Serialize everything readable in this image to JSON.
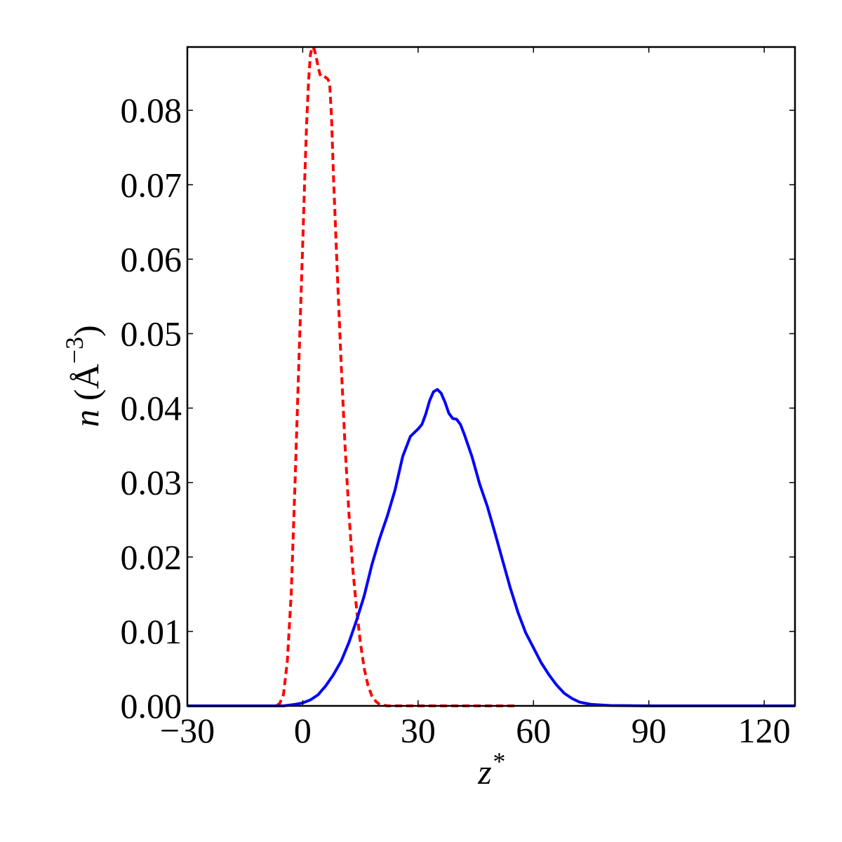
{
  "chart_data": {
    "type": "line",
    "xlabel_main": "z",
    "xlabel_sup": "*",
    "ylabel_var": "n",
    "ylabel_unit_open": " (",
    "ylabel_unit": "Å",
    "ylabel_exp": "−3",
    "ylabel_unit_close": ")",
    "xlim": [
      -30,
      128
    ],
    "ylim": [
      0,
      0.0885
    ],
    "xticks": [
      -30,
      0,
      30,
      60,
      90,
      120
    ],
    "xtick_labels": [
      "−30",
      "0",
      "30",
      "60",
      "90",
      "120"
    ],
    "yticks": [
      0.0,
      0.01,
      0.02,
      0.03,
      0.04,
      0.05,
      0.06,
      0.07,
      0.08
    ],
    "ytick_labels": [
      "0.00",
      "0.01",
      "0.02",
      "0.03",
      "0.04",
      "0.05",
      "0.06",
      "0.07",
      "0.08"
    ],
    "grid": false,
    "series": [
      {
        "color": "#ff0000",
        "style": "dashed",
        "x": [
          -30,
          -10,
          -7,
          -6,
          -5,
          -4,
          -3,
          -2,
          -1,
          0,
          0.5,
          1,
          1.5,
          2,
          2.5,
          3,
          3.5,
          4,
          4.5,
          5,
          5.5,
          6,
          6.5,
          7,
          7.5,
          8,
          9,
          10,
          11,
          12,
          13,
          14,
          15,
          16,
          17,
          18,
          19,
          20,
          22,
          25,
          30,
          40,
          55
        ],
        "y": [
          0,
          0,
          0,
          0.0003,
          0.0015,
          0.006,
          0.015,
          0.03,
          0.046,
          0.062,
          0.0705,
          0.078,
          0.0838,
          0.0875,
          0.0885,
          0.0882,
          0.0872,
          0.0858,
          0.0848,
          0.0845,
          0.0846,
          0.0844,
          0.0842,
          0.0837,
          0.079,
          0.071,
          0.058,
          0.046,
          0.035,
          0.026,
          0.0185,
          0.013,
          0.0085,
          0.005,
          0.0027,
          0.0013,
          0.0006,
          0.0002,
          0,
          0,
          0,
          0,
          0
        ]
      },
      {
        "color": "#0000ff",
        "style": "solid",
        "x": [
          -30,
          -10,
          -5,
          -2,
          0,
          2,
          4,
          6,
          8,
          10,
          12,
          14,
          16,
          18,
          20,
          22,
          24,
          26,
          28,
          30,
          31,
          32,
          33,
          34,
          35,
          36,
          37,
          38,
          39,
          40,
          41,
          42,
          44,
          46,
          48,
          50,
          52,
          54,
          56,
          58,
          60,
          62,
          64,
          66,
          68,
          70,
          72,
          75,
          80,
          90,
          100,
          128
        ],
        "y": [
          0,
          0,
          0,
          0.0002,
          0.0004,
          0.0008,
          0.0015,
          0.0027,
          0.0042,
          0.006,
          0.0085,
          0.0115,
          0.0148,
          0.019,
          0.0225,
          0.0255,
          0.029,
          0.0335,
          0.0362,
          0.0372,
          0.0378,
          0.0392,
          0.041,
          0.0422,
          0.0425,
          0.042,
          0.0408,
          0.0393,
          0.0386,
          0.0385,
          0.0378,
          0.0365,
          0.0335,
          0.0298,
          0.0268,
          0.0232,
          0.0195,
          0.0158,
          0.0125,
          0.0098,
          0.0078,
          0.0058,
          0.0042,
          0.0028,
          0.0017,
          0.001,
          0.0005,
          0.0002,
          5e-05,
          0,
          0,
          0
        ]
      }
    ]
  }
}
